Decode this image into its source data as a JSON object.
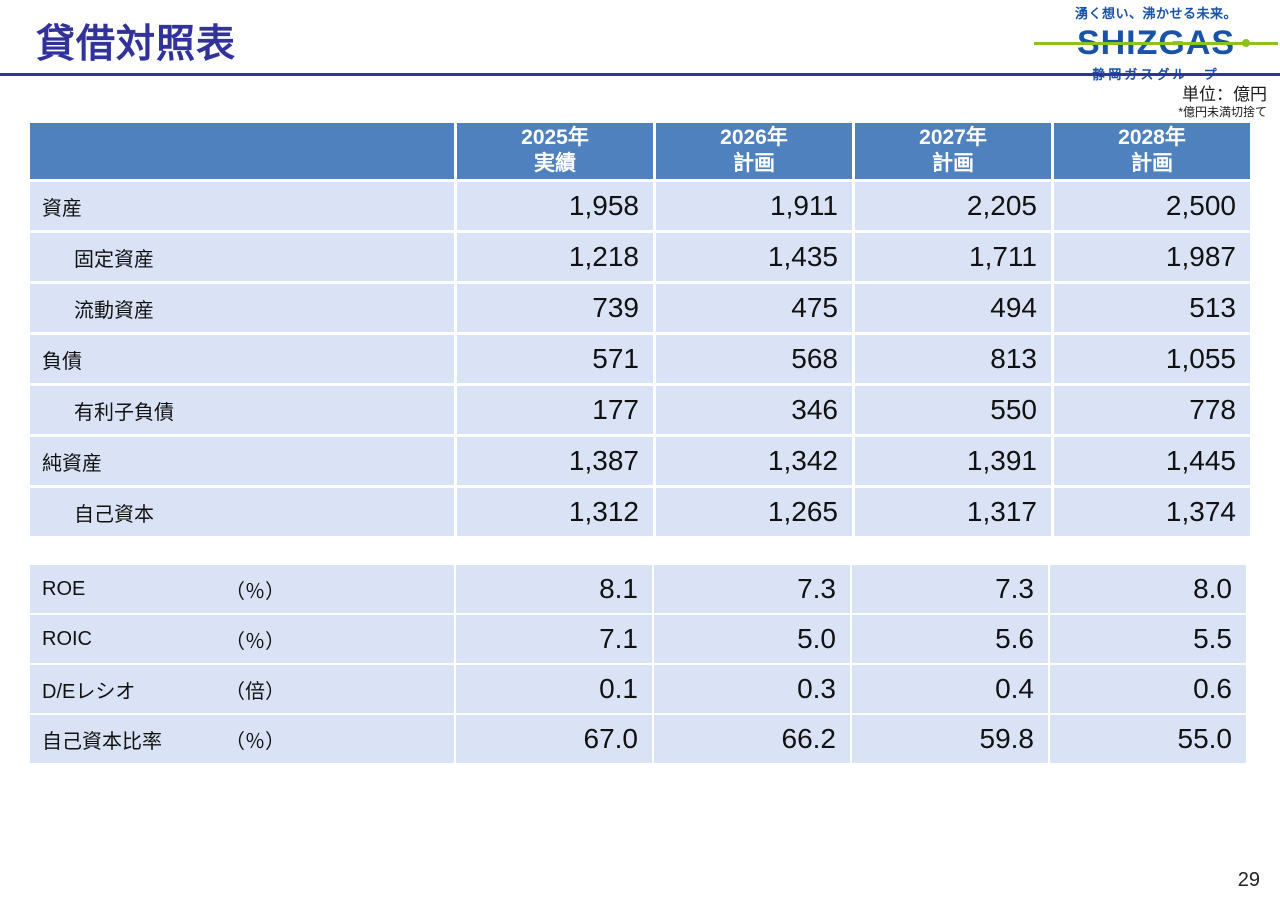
{
  "slide": {
    "title": "貸借対照表",
    "unit_note": "単位：億円",
    "rounding_note": "*億円未満切捨て",
    "page_number": "29"
  },
  "logo": {
    "tagline": "湧く想い、沸かせる未来。",
    "wordmark": "SHIZGAS",
    "subtitle": "静岡ガスグループ"
  },
  "colors": {
    "title_blue": "#32329B",
    "header_blue": "#4E81BD",
    "row_light_blue": "#DAE3F5",
    "logo_blue": "#1A52A5",
    "logo_green": "#8CC11E"
  },
  "table": {
    "columns": [
      {
        "year": "2025年",
        "type": "実績"
      },
      {
        "year": "2026年",
        "type": "計画"
      },
      {
        "year": "2027年",
        "type": "計画"
      },
      {
        "year": "2028年",
        "type": "計画"
      }
    ],
    "rows": [
      {
        "label": "資産",
        "indent": false,
        "values": [
          "1,958",
          "1,911",
          "2,205",
          "2,500"
        ]
      },
      {
        "label": "固定資産",
        "indent": true,
        "values": [
          "1,218",
          "1,435",
          "1,711",
          "1,987"
        ]
      },
      {
        "label": "流動資産",
        "indent": true,
        "values": [
          "739",
          "475",
          "494",
          "513"
        ]
      },
      {
        "label": "負債",
        "indent": false,
        "values": [
          "571",
          "568",
          "813",
          "1,055"
        ]
      },
      {
        "label": "有利子負債",
        "indent": true,
        "values": [
          "177",
          "346",
          "550",
          "778"
        ]
      },
      {
        "label": "純資産",
        "indent": false,
        "values": [
          "1,387",
          "1,342",
          "1,391",
          "1,445"
        ]
      },
      {
        "label": "自己資本",
        "indent": true,
        "values": [
          "1,312",
          "1,265",
          "1,317",
          "1,374"
        ]
      }
    ]
  },
  "ratio_table": {
    "rows": [
      {
        "label": "ROE",
        "unit": "（％）",
        "values": [
          "8.1",
          "7.3",
          "7.3",
          "8.0"
        ]
      },
      {
        "label": "ROIC",
        "unit": "（％）",
        "values": [
          "7.1",
          "5.0",
          "5.6",
          "5.5"
        ]
      },
      {
        "label": "D/Eレシオ",
        "unit": "（倍）",
        "values": [
          "0.1",
          "0.3",
          "0.4",
          "0.6"
        ]
      },
      {
        "label": "自己資本比率",
        "unit": "（％）",
        "values": [
          "67.0",
          "66.2",
          "59.8",
          "55.0"
        ]
      }
    ]
  }
}
